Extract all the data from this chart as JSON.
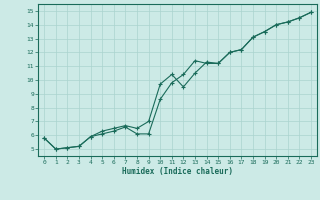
{
  "xlabel": "Humidex (Indice chaleur)",
  "xlim": [
    -0.5,
    23.5
  ],
  "ylim": [
    4.5,
    15.5
  ],
  "yticks": [
    5,
    6,
    7,
    8,
    9,
    10,
    11,
    12,
    13,
    14,
    15
  ],
  "xticks": [
    0,
    1,
    2,
    3,
    4,
    5,
    6,
    7,
    8,
    9,
    10,
    11,
    12,
    13,
    14,
    15,
    16,
    17,
    18,
    19,
    20,
    21,
    22,
    23
  ],
  "bg_color": "#cceae6",
  "line_color": "#1a6b5a",
  "grid_color": "#aad4cf",
  "line1_x": [
    0,
    1,
    2,
    3,
    4,
    5,
    6,
    7,
    8,
    9,
    10,
    11,
    12,
    13,
    14,
    15,
    16,
    17,
    18,
    19,
    20,
    21,
    22,
    23
  ],
  "line1_y": [
    5.8,
    5.0,
    5.1,
    5.2,
    5.9,
    6.3,
    6.5,
    6.7,
    6.5,
    7.0,
    9.7,
    10.4,
    9.5,
    10.5,
    11.3,
    11.2,
    12.0,
    12.2,
    13.1,
    13.5,
    14.0,
    14.2,
    14.5,
    14.9
  ],
  "line2_x": [
    0,
    1,
    2,
    3,
    4,
    5,
    6,
    7,
    8,
    9,
    10,
    11,
    12,
    13,
    14,
    15,
    16,
    17,
    18,
    19,
    20,
    21,
    22,
    23
  ],
  "line2_y": [
    5.8,
    5.0,
    5.1,
    5.2,
    5.9,
    6.1,
    6.3,
    6.6,
    6.1,
    6.1,
    8.6,
    9.8,
    10.4,
    11.4,
    11.2,
    11.2,
    12.0,
    12.2,
    13.1,
    13.5,
    14.0,
    14.2,
    14.5,
    14.9
  ]
}
